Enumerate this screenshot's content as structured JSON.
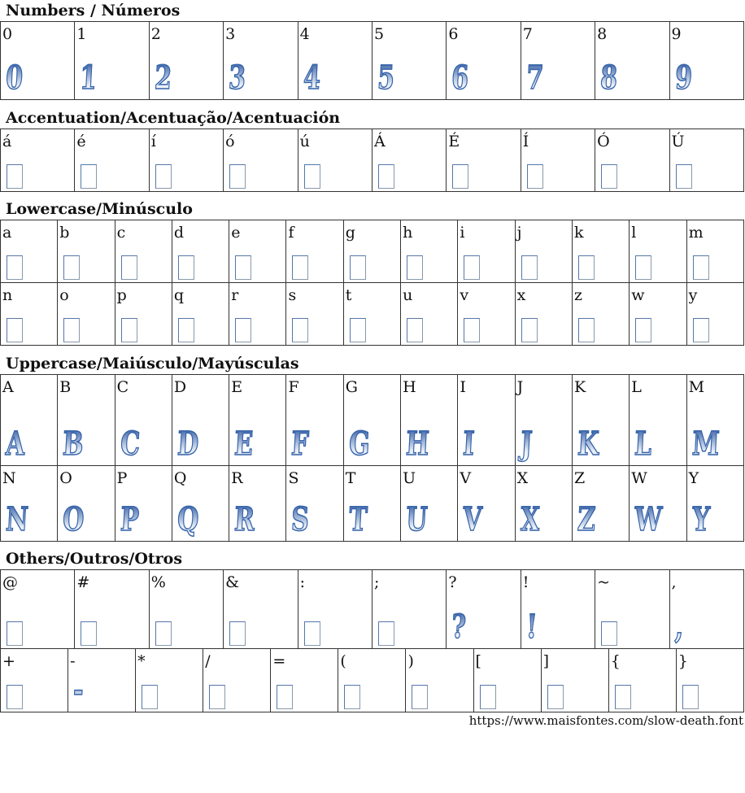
{
  "sections": [
    {
      "title": "Numbers / Números",
      "rows": [
        [
          [
            "0",
            1
          ],
          [
            "1",
            1
          ],
          [
            "2",
            1
          ],
          [
            "3",
            1
          ],
          [
            "4",
            1
          ],
          [
            "5",
            1
          ],
          [
            "6",
            1
          ],
          [
            "7",
            1
          ],
          [
            "8",
            1
          ],
          [
            "9",
            1
          ]
        ]
      ]
    },
    {
      "title": "Accentuation/Acentuação/Acentuación",
      "rows": [
        [
          [
            "á",
            0
          ],
          [
            "é",
            0
          ],
          [
            "í",
            0
          ],
          [
            "ó",
            0
          ],
          [
            "ú",
            0
          ],
          [
            "Á",
            0
          ],
          [
            "É",
            0
          ],
          [
            "Í",
            0
          ],
          [
            "Ó",
            0
          ],
          [
            "Ú",
            0
          ]
        ]
      ]
    },
    {
      "title": "Lowercase/Minúsculo",
      "rows": [
        [
          [
            "a",
            0
          ],
          [
            "b",
            0
          ],
          [
            "c",
            0
          ],
          [
            "d",
            0
          ],
          [
            "e",
            0
          ],
          [
            "f",
            0
          ],
          [
            "g",
            0
          ],
          [
            "h",
            0
          ],
          [
            "i",
            0
          ],
          [
            "j",
            0
          ],
          [
            "k",
            0
          ],
          [
            "l",
            0
          ],
          [
            "m",
            0
          ]
        ],
        [
          [
            "n",
            0
          ],
          [
            "o",
            0
          ],
          [
            "p",
            0
          ],
          [
            "q",
            0
          ],
          [
            "r",
            0
          ],
          [
            "s",
            0
          ],
          [
            "t",
            0
          ],
          [
            "u",
            0
          ],
          [
            "v",
            0
          ],
          [
            "x",
            0
          ],
          [
            "z",
            0
          ],
          [
            "w",
            0
          ],
          [
            "y",
            0
          ]
        ]
      ]
    },
    {
      "title": "Uppercase/Maiúsculo/Mayúsculas",
      "rows": [
        [
          [
            "A",
            1
          ],
          [
            "B",
            1
          ],
          [
            "C",
            1
          ],
          [
            "D",
            1
          ],
          [
            "E",
            1
          ],
          [
            "F",
            1
          ],
          [
            "G",
            1
          ],
          [
            "H",
            1
          ],
          [
            "I",
            1
          ],
          [
            "J",
            1
          ],
          [
            "K",
            1
          ],
          [
            "L",
            1
          ],
          [
            "M",
            1
          ]
        ],
        [
          [
            "N",
            1
          ],
          [
            "O",
            1
          ],
          [
            "P",
            1
          ],
          [
            "Q",
            1
          ],
          [
            "R",
            1
          ],
          [
            "S",
            1
          ],
          [
            "T",
            1
          ],
          [
            "U",
            1
          ],
          [
            "V",
            1
          ],
          [
            "X",
            1
          ],
          [
            "Z",
            1
          ],
          [
            "W",
            1
          ],
          [
            "Y",
            1
          ]
        ]
      ]
    },
    {
      "title": "Others/Outros/Otros",
      "rows": [
        [
          [
            "@",
            0
          ],
          [
            "#",
            0
          ],
          [
            "%",
            0
          ],
          [
            "&",
            0
          ],
          [
            ":",
            0
          ],
          [
            ";",
            0
          ],
          [
            "?",
            1
          ],
          [
            "!",
            1
          ],
          [
            "~",
            0
          ],
          [
            ",",
            1
          ]
        ],
        [
          [
            "+",
            0
          ],
          [
            "-",
            1
          ],
          [
            "*",
            0
          ],
          [
            "/",
            0
          ],
          [
            "=",
            0
          ],
          [
            "(",
            0
          ],
          [
            ")",
            0
          ],
          [
            "[",
            0
          ],
          [
            "]",
            0
          ],
          [
            "{",
            0
          ],
          [
            "}",
            0
          ]
        ]
      ]
    }
  ],
  "footer": "https://www.maisfontes.com/slow-death.font",
  "colors": {
    "glyph_stroke": "#3563aa",
    "tofu_border": "#5577aa"
  }
}
